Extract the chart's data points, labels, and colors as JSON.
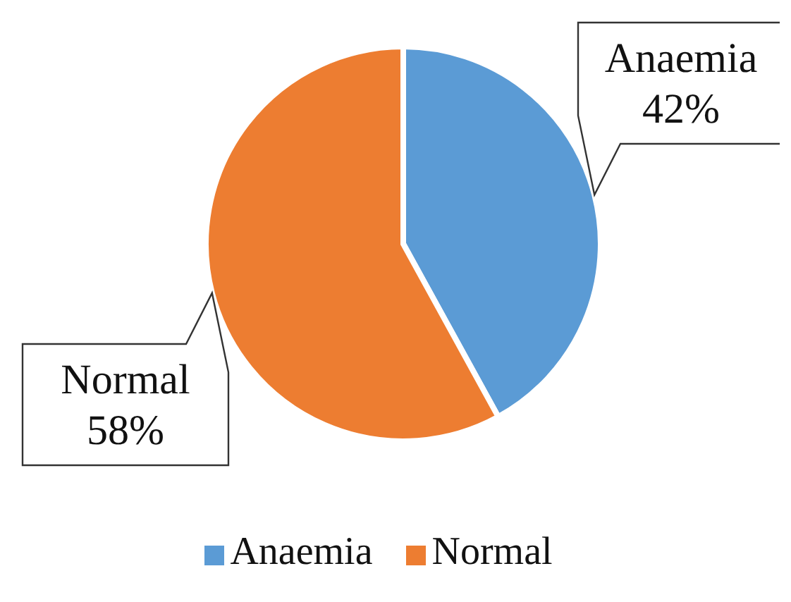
{
  "chart_data": {
    "type": "pie",
    "categories": [
      "Anaemia",
      "Normal"
    ],
    "values": [
      42,
      58
    ],
    "colors": [
      "#5b9bd5",
      "#ed7d31"
    ],
    "value_labels": [
      "42%",
      "58%"
    ],
    "legend": "bottom"
  }
}
